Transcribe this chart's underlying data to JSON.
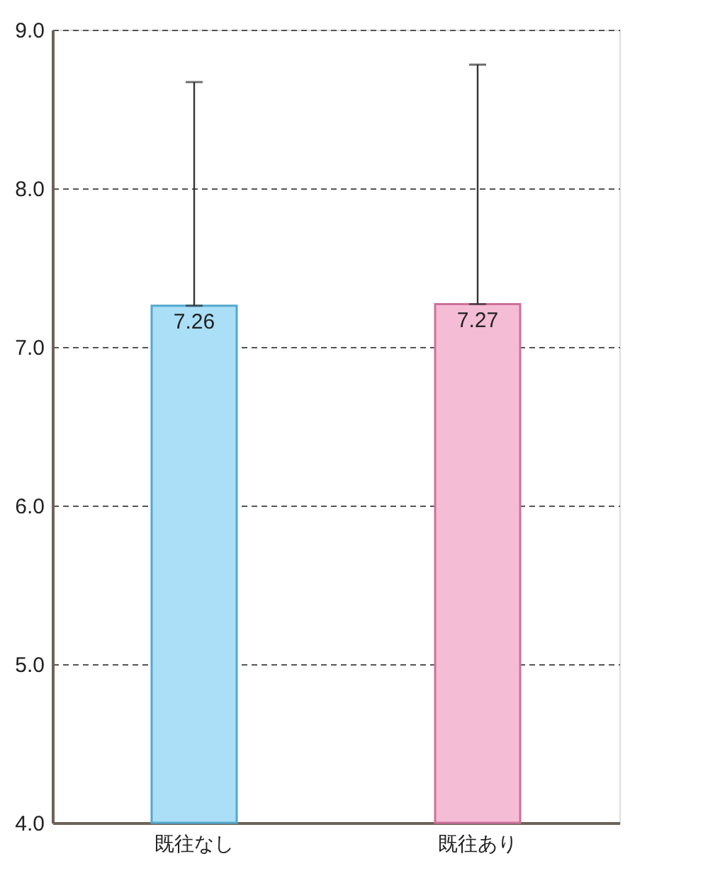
{
  "chart_data": {
    "type": "bar",
    "categories": [
      "既往なし",
      "既往あり"
    ],
    "values": [
      7.26,
      7.27
    ],
    "colors": [
      "#aadff7",
      "#f5bcd6"
    ],
    "errors": [
      [
        7.26,
        8.67
      ],
      [
        7.27,
        8.78
      ]
    ],
    "ylim": [
      4,
      9
    ],
    "yticks": [
      {
        "value": 4,
        "label": "4.0"
      },
      {
        "value": 5,
        "label": "5.0"
      },
      {
        "value": 6,
        "label": "6.0"
      },
      {
        "value": 7,
        "label": "7.0"
      },
      {
        "value": 8,
        "label": "8.0"
      },
      {
        "value": 9,
        "label": "9.0"
      }
    ],
    "grid": "y",
    "line_style": "dashed",
    "data_labels": true
  }
}
